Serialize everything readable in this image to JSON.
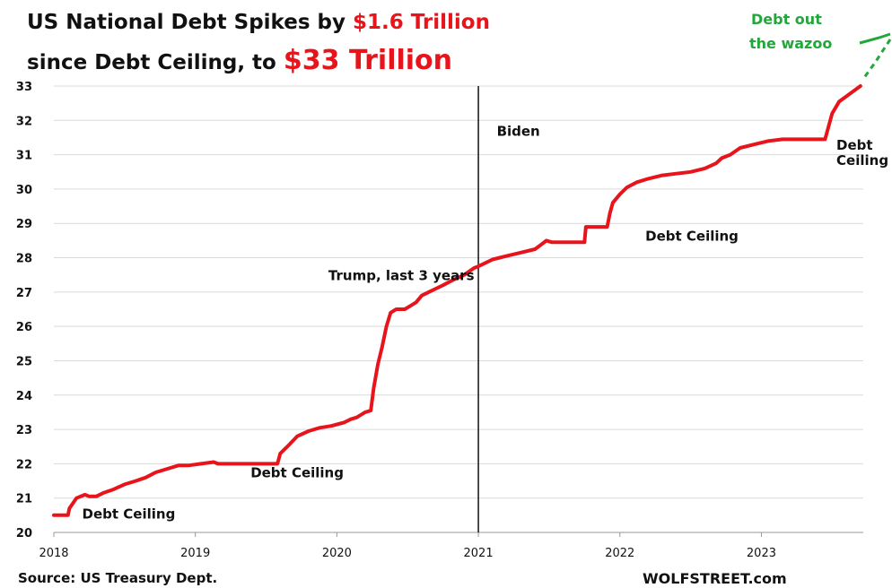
{
  "title": {
    "line1_prefix": "US National Debt Spikes by ",
    "line1_highlight": "$1.6 Trillion",
    "line2_prefix": "since Debt Ceiling, to ",
    "line2_highlight": "$33 Trillion"
  },
  "footer": {
    "source": "Source: US Treasury Dept.",
    "brand": "WOLFSTREET.com"
  },
  "colors": {
    "series": "#e8141c",
    "highlight_text": "#e8141c",
    "annotation_green": "#22a83a",
    "grid": "#d9d9d9",
    "divider": "#111111"
  },
  "chart_data": {
    "type": "line",
    "title": "US National Debt Spikes by $1.6 Trillion since Debt Ceiling, to $33 Trillion",
    "xlabel": "",
    "ylabel": "",
    "xlim": [
      2018.0,
      2023.72
    ],
    "ylim": [
      20,
      33
    ],
    "x_ticks": [
      "2018",
      "2019",
      "2020",
      "2021",
      "2022",
      "2023"
    ],
    "y_ticks": [
      20,
      21,
      22,
      23,
      24,
      25,
      26,
      27,
      28,
      29,
      30,
      31,
      32,
      33
    ],
    "grid": "horizontal",
    "unit": "Trillion $",
    "series": [
      {
        "x": [
          2018.0,
          2018.1,
          2018.11,
          2018.16,
          2018.22,
          2018.25,
          2018.3,
          2018.35,
          2018.42,
          2018.5,
          2018.58,
          2018.65,
          2018.72,
          2018.8,
          2018.88,
          2018.95,
          2019.04,
          2019.13,
          2019.16,
          2019.5,
          2019.58,
          2019.6,
          2019.65,
          2019.72,
          2019.8,
          2019.88,
          2019.96,
          2020.05,
          2020.1,
          2020.14,
          2020.2,
          2020.24,
          2020.26,
          2020.29,
          2020.32,
          2020.35,
          2020.38,
          2020.42,
          2020.48,
          2020.52,
          2020.56,
          2020.6,
          2020.65,
          2020.7,
          2020.75,
          2020.82,
          2020.9,
          2020.97,
          2021.0,
          2021.05,
          2021.1,
          2021.2,
          2021.3,
          2021.4,
          2021.45,
          2021.48,
          2021.52,
          2021.55,
          2021.75,
          2021.76,
          2021.91,
          2021.93,
          2021.95,
          2022.0,
          2022.05,
          2022.12,
          2022.2,
          2022.3,
          2022.4,
          2022.5,
          2022.6,
          2022.68,
          2022.72,
          2022.78,
          2022.85,
          2022.95,
          2023.05,
          2023.15,
          2023.25,
          2023.3,
          2023.45,
          2023.46,
          2023.5,
          2023.55,
          2023.6,
          2023.65,
          2023.7
        ],
        "y": [
          20.5,
          20.5,
          20.7,
          21.0,
          21.1,
          21.05,
          21.05,
          21.15,
          21.25,
          21.4,
          21.5,
          21.6,
          21.75,
          21.85,
          21.95,
          21.95,
          22.0,
          22.05,
          22.0,
          22.0,
          22.0,
          22.3,
          22.5,
          22.8,
          22.95,
          23.05,
          23.1,
          23.2,
          23.3,
          23.35,
          23.5,
          23.55,
          24.2,
          24.9,
          25.4,
          26.0,
          26.4,
          26.5,
          26.5,
          26.6,
          26.7,
          26.9,
          27.0,
          27.1,
          27.2,
          27.35,
          27.5,
          27.7,
          27.75,
          27.85,
          27.95,
          28.05,
          28.15,
          28.25,
          28.4,
          28.5,
          28.45,
          28.45,
          28.45,
          28.9,
          28.9,
          29.3,
          29.6,
          29.85,
          30.05,
          30.2,
          30.3,
          30.4,
          30.45,
          30.5,
          30.6,
          30.75,
          30.9,
          31.0,
          31.2,
          31.3,
          31.4,
          31.45,
          31.45,
          31.45,
          31.45,
          31.6,
          32.2,
          32.55,
          32.7,
          32.85,
          33.0
        ]
      }
    ],
    "annotations": [
      {
        "text": "Debt Ceiling",
        "x": 2018.2,
        "y": 20.4
      },
      {
        "text": "Debt Ceiling",
        "x": 2019.39,
        "y": 21.6
      },
      {
        "text": "Trump, last 3 years",
        "x": 2019.94,
        "y": 27.35
      },
      {
        "text": "Biden",
        "x": 2021.13,
        "y": 31.55
      },
      {
        "text": "Debt Ceiling",
        "x": 2022.18,
        "y": 28.5
      },
      {
        "text": "Debt",
        "x": 2023.53,
        "y": 31.15
      },
      {
        "text": "Ceiling",
        "x": 2023.53,
        "y": 30.7
      }
    ],
    "callout": {
      "line1": "Debt out",
      "line2": "the wazoo"
    },
    "vertical_line_x": 2021.0
  }
}
